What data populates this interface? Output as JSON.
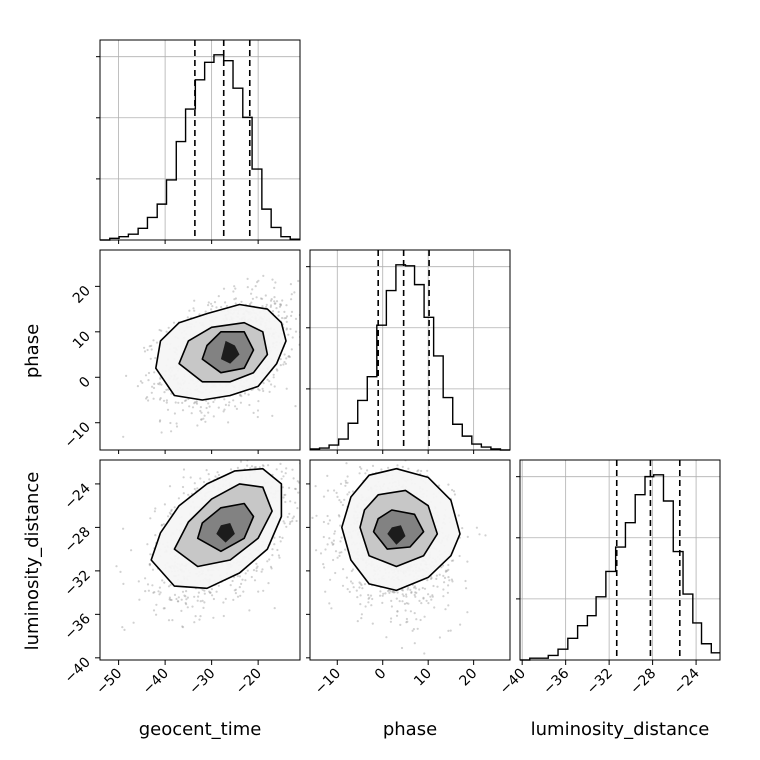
{
  "chart_data": {
    "type": "corner",
    "grid": true,
    "parameters": [
      {
        "name": "geocent_time",
        "label": "geocent_time",
        "range": [
          -54,
          -11
        ],
        "ticks": [
          -50,
          -40,
          -30,
          -20
        ],
        "tick_labels": [
          "−50",
          "−40",
          "−30",
          "−20"
        ],
        "quantiles": [
          -33.6,
          -27.4,
          -21.8
        ]
      },
      {
        "name": "phase",
        "label": "phase",
        "range": [
          -16,
          28
        ],
        "ticks": [
          -10,
          0,
          10,
          20
        ],
        "tick_labels": [
          "−10",
          "0",
          "10",
          "20"
        ],
        "quantiles": [
          -1.0,
          4.6,
          10.2
        ]
      },
      {
        "name": "luminosity_distance",
        "label": "luminosity_distance",
        "range": [
          -40.2,
          -21.8
        ],
        "ticks": [
          -40,
          -36,
          -32,
          -28,
          -24
        ],
        "tick_labels": [
          "−40",
          "−36",
          "−32",
          "−28",
          "−24"
        ],
        "quantiles": [
          -31.3,
          -28.2,
          -25.5
        ]
      }
    ],
    "histograms": [
      {
        "param": "geocent_time",
        "bin_edges": [
          -54.0,
          -51.9,
          -49.9,
          -47.9,
          -45.8,
          -43.8,
          -41.7,
          -39.7,
          -37.6,
          -35.6,
          -33.5,
          -31.5,
          -29.5,
          -27.4,
          -25.4,
          -23.3,
          -21.3,
          -19.2,
          -17.2,
          -15.1,
          -13.1,
          -11.0
        ],
        "counts": [
          0,
          2,
          4,
          7,
          14,
          27,
          43,
          72,
          118,
          157,
          192,
          213,
          222,
          215,
          182,
          147,
          85,
          37,
          15,
          4,
          1
        ]
      },
      {
        "param": "phase",
        "bin_edges": [
          -16.0,
          -13.9,
          -11.8,
          -9.7,
          -7.6,
          -5.5,
          -3.4,
          -1.3,
          0.8,
          2.9,
          5.0,
          7.0,
          9.1,
          11.2,
          13.3,
          15.4,
          17.5,
          19.6,
          21.7,
          23.8,
          25.9,
          28.0
        ],
        "counts": [
          1,
          2,
          5,
          11,
          27,
          50,
          74,
          126,
          161,
          187,
          186,
          167,
          134,
          95,
          53,
          26,
          14,
          6,
          3,
          1,
          0
        ]
      },
      {
        "param": "luminosity_distance",
        "bin_edges": [
          -40.2,
          -39.3,
          -38.4,
          -37.6,
          -36.7,
          -35.8,
          -34.9,
          -34.0,
          -33.2,
          -32.3,
          -31.4,
          -30.5,
          -29.6,
          -28.7,
          -27.9,
          -27.0,
          -26.1,
          -25.2,
          -24.3,
          -23.5,
          -22.6,
          -21.8
        ],
        "counts": [
          0,
          2,
          2,
          5,
          12,
          24,
          38,
          49,
          70,
          98,
          125,
          152,
          183,
          203,
          205,
          176,
          120,
          73,
          41,
          18,
          8
        ]
      }
    ],
    "panels_2d": [
      {
        "x": "geocent_time",
        "y": "phase",
        "center": [
          -26.5,
          5.5
        ],
        "spread": [
          7,
          6
        ],
        "correlation": 0.35,
        "contours": [
          {
            "level": "outer",
            "points": [
              [
                -42,
                2
              ],
              [
                -38,
                -4
              ],
              [
                -32,
                -5
              ],
              [
                -26,
                -4
              ],
              [
                -20,
                -2
              ],
              [
                -16,
                3
              ],
              [
                -14,
                8
              ],
              [
                -15,
                12
              ],
              [
                -18,
                15
              ],
              [
                -24,
                16
              ],
              [
                -31,
                14
              ],
              [
                -37,
                12
              ],
              [
                -41,
                8
              ]
            ]
          },
          {
            "level": "middle",
            "points": [
              [
                -37,
                3
              ],
              [
                -32,
                -1
              ],
              [
                -26,
                -1
              ],
              [
                -21,
                1
              ],
              [
                -18,
                5
              ],
              [
                -19,
                10
              ],
              [
                -23,
                12
              ],
              [
                -30,
                11
              ],
              [
                -35,
                8
              ]
            ]
          },
          {
            "level": "inner",
            "points": [
              [
                -32,
                4
              ],
              [
                -28,
                1
              ],
              [
                -23,
                2
              ],
              [
                -21,
                6
              ],
              [
                -23,
                10
              ],
              [
                -28,
                10
              ],
              [
                -31,
                7
              ]
            ]
          },
          {
            "level": "core",
            "points": [
              [
                -28,
                4
              ],
              [
                -26,
                3
              ],
              [
                -24,
                5
              ],
              [
                -25,
                7
              ],
              [
                -27,
                8
              ]
            ]
          }
        ]
      },
      {
        "x": "geocent_time",
        "y": "luminosity_distance",
        "center": [
          -28,
          -28.5
        ],
        "spread": [
          7,
          3
        ],
        "correlation": 0.45,
        "contours": [
          {
            "level": "outer",
            "points": [
              [
                -43,
                -31
              ],
              [
                -38,
                -33.4
              ],
              [
                -31,
                -33.6
              ],
              [
                -24,
                -32.2
              ],
              [
                -18,
                -30
              ],
              [
                -15,
                -27
              ],
              [
                -15,
                -24
              ],
              [
                -19,
                -22.6
              ],
              [
                -25,
                -22.8
              ],
              [
                -31,
                -24
              ],
              [
                -37,
                -26
              ],
              [
                -41,
                -28.5
              ]
            ]
          },
          {
            "level": "middle",
            "points": [
              [
                -38,
                -30
              ],
              [
                -33,
                -31.6
              ],
              [
                -26,
                -31
              ],
              [
                -20,
                -29
              ],
              [
                -17,
                -26.5
              ],
              [
                -19,
                -24.3
              ],
              [
                -24,
                -24
              ],
              [
                -30,
                -25.4
              ],
              [
                -35,
                -27.5
              ]
            ]
          },
          {
            "level": "inner",
            "points": [
              [
                -33,
                -29
              ],
              [
                -28,
                -30.2
              ],
              [
                -23,
                -29
              ],
              [
                -21,
                -27
              ],
              [
                -23,
                -25.8
              ],
              [
                -28,
                -26.2
              ],
              [
                -32,
                -27.6
              ]
            ]
          },
          {
            "level": "core",
            "points": [
              [
                -29,
                -28.6
              ],
              [
                -27,
                -29.4
              ],
              [
                -25,
                -28.6
              ],
              [
                -26,
                -27.6
              ],
              [
                -28,
                -27.8
              ]
            ]
          }
        ]
      },
      {
        "x": "phase",
        "y": "luminosity_distance",
        "center": [
          3,
          -28.8
        ],
        "spread": [
          6,
          3
        ],
        "correlation": -0.1,
        "contours": [
          {
            "level": "outer",
            "points": [
              [
                -9,
                -28
              ],
              [
                -7,
                -31
              ],
              [
                -3,
                -33.2
              ],
              [
                3,
                -33.8
              ],
              [
                10,
                -32.6
              ],
              [
                15,
                -30.6
              ],
              [
                17,
                -28.6
              ],
              [
                15,
                -25.5
              ],
              [
                10,
                -23.4
              ],
              [
                3,
                -22.6
              ],
              [
                -3,
                -23.2
              ],
              [
                -7,
                -25.2
              ]
            ]
          },
          {
            "level": "middle",
            "points": [
              [
                -5,
                -28
              ],
              [
                -3,
                -30.6
              ],
              [
                3,
                -31.6
              ],
              [
                9,
                -30.6
              ],
              [
                12,
                -28.6
              ],
              [
                10,
                -26
              ],
              [
                5,
                -24.6
              ],
              [
                -1,
                -25
              ],
              [
                -4,
                -26.4
              ]
            ]
          },
          {
            "level": "inner",
            "points": [
              [
                -2,
                -28.4
              ],
              [
                1,
                -30
              ],
              [
                6,
                -29.8
              ],
              [
                9,
                -28.4
              ],
              [
                7,
                -26.8
              ],
              [
                2,
                -26.4
              ],
              [
                -1,
                -27.2
              ]
            ]
          },
          {
            "level": "core",
            "points": [
              [
                1,
                -28.6
              ],
              [
                3,
                -29.6
              ],
              [
                5,
                -28.8
              ],
              [
                4,
                -27.8
              ],
              [
                2,
                -28
              ]
            ]
          }
        ]
      }
    ]
  }
}
